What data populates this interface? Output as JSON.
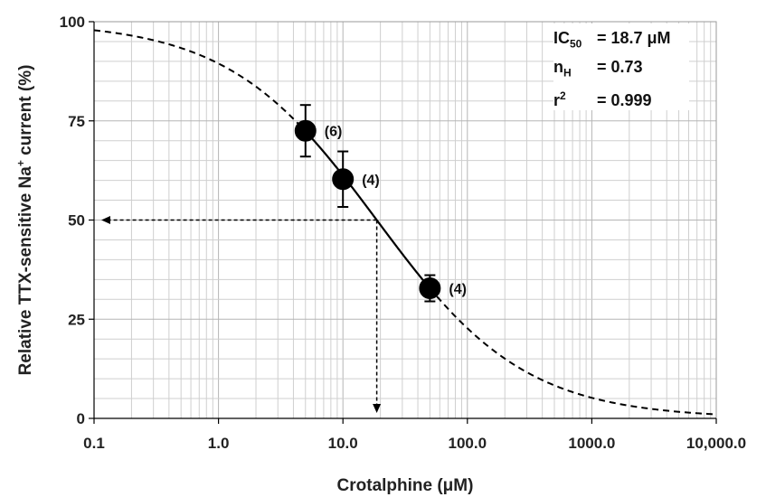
{
  "chart_data": {
    "type": "scatter",
    "xlabel": "Crotalphine (μM)",
    "ylabel_main": "Relative TTX-sensitive Na",
    "ylabel_sup": "+",
    "ylabel_rest": " current (%)",
    "x_scale": "log",
    "xlim": [
      0.1,
      10000
    ],
    "ylim": [
      0,
      100
    ],
    "x_ticks": [
      0.1,
      1,
      10,
      100,
      1000,
      10000
    ],
    "x_tick_labels": [
      "0.1",
      "1.0",
      "10.0",
      "100.0",
      "1000.0",
      "10,000.0"
    ],
    "y_ticks": [
      0,
      25,
      50,
      75,
      100
    ],
    "y_tick_labels": [
      "0",
      "25",
      "50",
      "75",
      "100"
    ],
    "grid": true,
    "points": [
      {
        "x": 5,
        "y": 72.5,
        "err": 6.5,
        "n_label": "(6)"
      },
      {
        "x": 10,
        "y": 60.3,
        "err": 7.0,
        "n_label": "(4)"
      },
      {
        "x": 50,
        "y": 32.8,
        "err": 3.3,
        "n_label": "(4)"
      }
    ],
    "fit": {
      "ic50": 18.7,
      "hill": 0.73,
      "top": 100,
      "bottom": 0
    },
    "ic50_marker": {
      "x": 18.7,
      "y": 50
    },
    "stats": {
      "ic50_label": "IC",
      "ic50_sub": "50",
      "ic50_value": "= 18.7 μM",
      "nh_label": "n",
      "nh_sub": "H",
      "nh_value": "= 0.73",
      "r2_label": "r",
      "r2_sup": "2",
      "r2_value": "= 0.999"
    },
    "colors": {
      "line": "#000000",
      "marker": "#000000",
      "grid": "#cfcfcf"
    }
  }
}
